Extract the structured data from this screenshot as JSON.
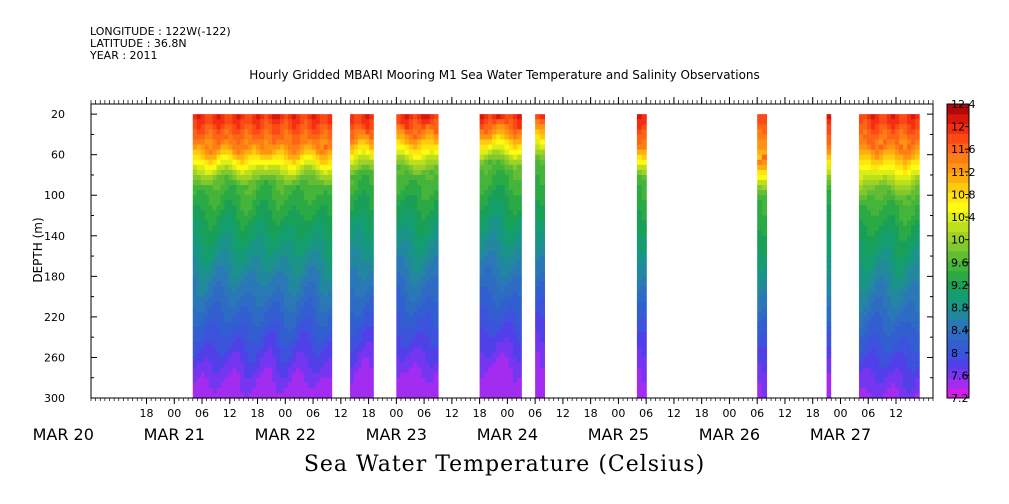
{
  "header": {
    "longitude": "LONGITUDE : 122W(-122)",
    "latitude": "LATITUDE : 36.8N",
    "year": "YEAR : 2011"
  },
  "title": "Hourly Gridded MBARI Mooring M1 Sea Water Temperature and Salinity Observations",
  "bottom_title": "Sea Water Temperature (Celsius)",
  "chart_data": {
    "type": "heatmap",
    "title": "Hourly Gridded MBARI Mooring M1 Sea Water Temperature and Salinity Observations",
    "ylabel": "DEPTH (m)",
    "xlabel": "",
    "y_reversed": true,
    "ylim": [
      300,
      10
    ],
    "xlim": [
      "2011-03-20 06:00",
      "2011-03-27 20:00"
    ],
    "y_ticks": [
      20,
      60,
      100,
      140,
      180,
      220,
      260,
      300
    ],
    "x_hour_ticks": [
      {
        "t": "2011-03-20 18:00",
        "label": "18"
      },
      {
        "t": "2011-03-21 00:00",
        "label": "00"
      },
      {
        "t": "2011-03-21 06:00",
        "label": "06"
      },
      {
        "t": "2011-03-21 12:00",
        "label": "12"
      },
      {
        "t": "2011-03-21 18:00",
        "label": "18"
      },
      {
        "t": "2011-03-22 00:00",
        "label": "00"
      },
      {
        "t": "2011-03-22 06:00",
        "label": "06"
      },
      {
        "t": "2011-03-22 12:00",
        "label": "12"
      },
      {
        "t": "2011-03-22 18:00",
        "label": "18"
      },
      {
        "t": "2011-03-23 00:00",
        "label": "00"
      },
      {
        "t": "2011-03-23 06:00",
        "label": "06"
      },
      {
        "t": "2011-03-23 12:00",
        "label": "12"
      },
      {
        "t": "2011-03-23 18:00",
        "label": "18"
      },
      {
        "t": "2011-03-24 00:00",
        "label": "00"
      },
      {
        "t": "2011-03-24 06:00",
        "label": "06"
      },
      {
        "t": "2011-03-24 12:00",
        "label": "12"
      },
      {
        "t": "2011-03-24 18:00",
        "label": "18"
      },
      {
        "t": "2011-03-25 00:00",
        "label": "00"
      },
      {
        "t": "2011-03-25 06:00",
        "label": "06"
      },
      {
        "t": "2011-03-25 12:00",
        "label": "12"
      },
      {
        "t": "2011-03-25 18:00",
        "label": "18"
      },
      {
        "t": "2011-03-26 00:00",
        "label": "00"
      },
      {
        "t": "2011-03-26 06:00",
        "label": "06"
      },
      {
        "t": "2011-03-26 12:00",
        "label": "12"
      },
      {
        "t": "2011-03-26 18:00",
        "label": "18"
      },
      {
        "t": "2011-03-27 00:00",
        "label": "00"
      },
      {
        "t": "2011-03-27 06:00",
        "label": "06"
      },
      {
        "t": "2011-03-27 12:00",
        "label": "12"
      }
    ],
    "x_day_labels": [
      {
        "t": "2011-03-20 00:00",
        "label": "MAR 20"
      },
      {
        "t": "2011-03-21 00:00",
        "label": "MAR 21"
      },
      {
        "t": "2011-03-22 00:00",
        "label": "MAR 22"
      },
      {
        "t": "2011-03-23 00:00",
        "label": "MAR 23"
      },
      {
        "t": "2011-03-24 00:00",
        "label": "MAR 24"
      },
      {
        "t": "2011-03-25 00:00",
        "label": "MAR 25"
      },
      {
        "t": "2011-03-26 00:00",
        "label": "MAR 26"
      },
      {
        "t": "2011-03-27 00:00",
        "label": "MAR 27"
      }
    ],
    "segments": [
      {
        "start": "2011-03-21 04:00",
        "end": "2011-03-22 10:00",
        "mld": 48,
        "thermo": 88
      },
      {
        "start": "2011-03-22 14:00",
        "end": "2011-03-22 19:00",
        "mld": 40,
        "thermo": 80
      },
      {
        "start": "2011-03-23 00:00",
        "end": "2011-03-23 09:00",
        "mld": 36,
        "thermo": 78
      },
      {
        "start": "2011-03-23 18:00",
        "end": "2011-03-24 03:00",
        "mld": 32,
        "thermo": 72
      },
      {
        "start": "2011-03-24 06:00",
        "end": "2011-03-24 08:00",
        "mld": 30,
        "thermo": 70
      },
      {
        "start": "2011-03-25 04:00",
        "end": "2011-03-25 06:00",
        "mld": 45,
        "thermo": 85
      },
      {
        "start": "2011-03-26 06:00",
        "end": "2011-03-26 08:00",
        "mld": 58,
        "thermo": 95
      },
      {
        "start": "2011-03-26 21:00",
        "end": "2011-03-26 21:30",
        "mld": 50,
        "thermo": 90
      },
      {
        "start": "2011-03-27 04:00",
        "end": "2011-03-27 17:00",
        "mld": 48,
        "thermo": 100
      }
    ],
    "colorbar": {
      "min": 7.2,
      "max": 12.4,
      "step": 0.2,
      "labels": [
        "12.4",
        "12",
        "11.6",
        "11.2",
        "10.8",
        "10.4",
        "10",
        "9.6",
        "9.2",
        "8.8",
        "8.4",
        "8",
        "7.6",
        "7.2"
      ],
      "colors": [
        "#d51dea",
        "#a22cf0",
        "#7436f0",
        "#5140e8",
        "#3c53dc",
        "#325fd0",
        "#2e6cc4",
        "#2a79b6",
        "#23889f",
        "#1a9488",
        "#149e70",
        "#199f58",
        "#2ba944",
        "#45b43a",
        "#62bd34",
        "#80c82d",
        "#9fd226",
        "#bde01d",
        "#dcee16",
        "#fefa11",
        "#fee60e",
        "#fecb0c",
        "#feaf10",
        "#fe9512",
        "#fd7e14",
        "#fd6416",
        "#fc4a16",
        "#f42e10",
        "#d8160a",
        "#b0080b"
      ]
    }
  }
}
